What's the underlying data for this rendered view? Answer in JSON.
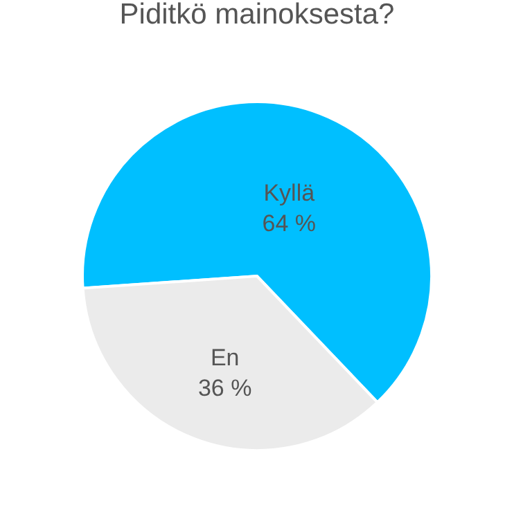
{
  "chart_data": {
    "type": "pie",
    "title": "Piditkö mainoksesta?",
    "categories": [
      "Kyllä",
      "En"
    ],
    "values": [
      64,
      36
    ],
    "colors": [
      "#00bfff",
      "#ebebeb"
    ],
    "value_labels": [
      "64 %",
      "36 %"
    ]
  }
}
